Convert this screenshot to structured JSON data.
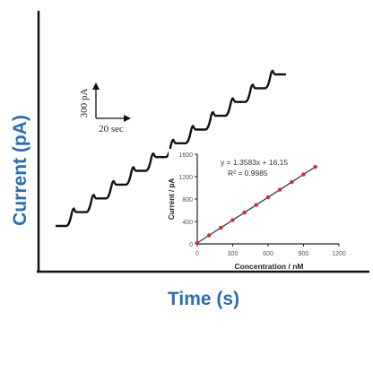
{
  "colors": {
    "axis": "#111111",
    "label": "#2e6db0",
    "trace": "#111111",
    "fit_line": "#3a3a6a",
    "points": "#d42a2a",
    "inset_text": "#222222"
  },
  "chart_data": [
    {
      "type": "line",
      "xlabel": "Time (s)",
      "ylabel": "Current (pA)",
      "grid": false,
      "legend": "none",
      "series": [
        {
          "values": [
            0,
            0,
            1,
            1,
            2,
            2,
            3,
            3,
            4,
            4,
            5,
            5,
            6,
            6,
            7,
            7,
            8,
            8,
            9,
            9,
            10,
            10,
            11,
            11
          ]
        }
      ],
      "scale_bar": {
        "y_label": "300 pA",
        "x_label": "20 sec"
      }
    },
    {
      "type": "scatter",
      "xlabel": "Concentration / nM",
      "ylabel": "Current / pA",
      "xlim": [
        0,
        1200
      ],
      "ylim": [
        0,
        1600
      ],
      "x_ticks": [
        "0",
        "300",
        "600",
        "900",
        "1200"
      ],
      "y_ticks": [
        "0",
        "400",
        "800",
        "1200",
        "1600"
      ],
      "grid": false,
      "equation": "y = 1.3583x + 16.15",
      "r2_label": "R² = 0.9985",
      "series": [
        {
          "x": [
            0,
            100,
            200,
            300,
            400,
            500,
            600,
            700,
            800,
            900,
            1000
          ],
          "y": [
            16,
            152,
            288,
            424,
            560,
            695,
            831,
            967,
            1103,
            1239,
            1375
          ]
        }
      ],
      "fit": {
        "slope": 1.3583,
        "intercept": 16.15
      }
    }
  ]
}
